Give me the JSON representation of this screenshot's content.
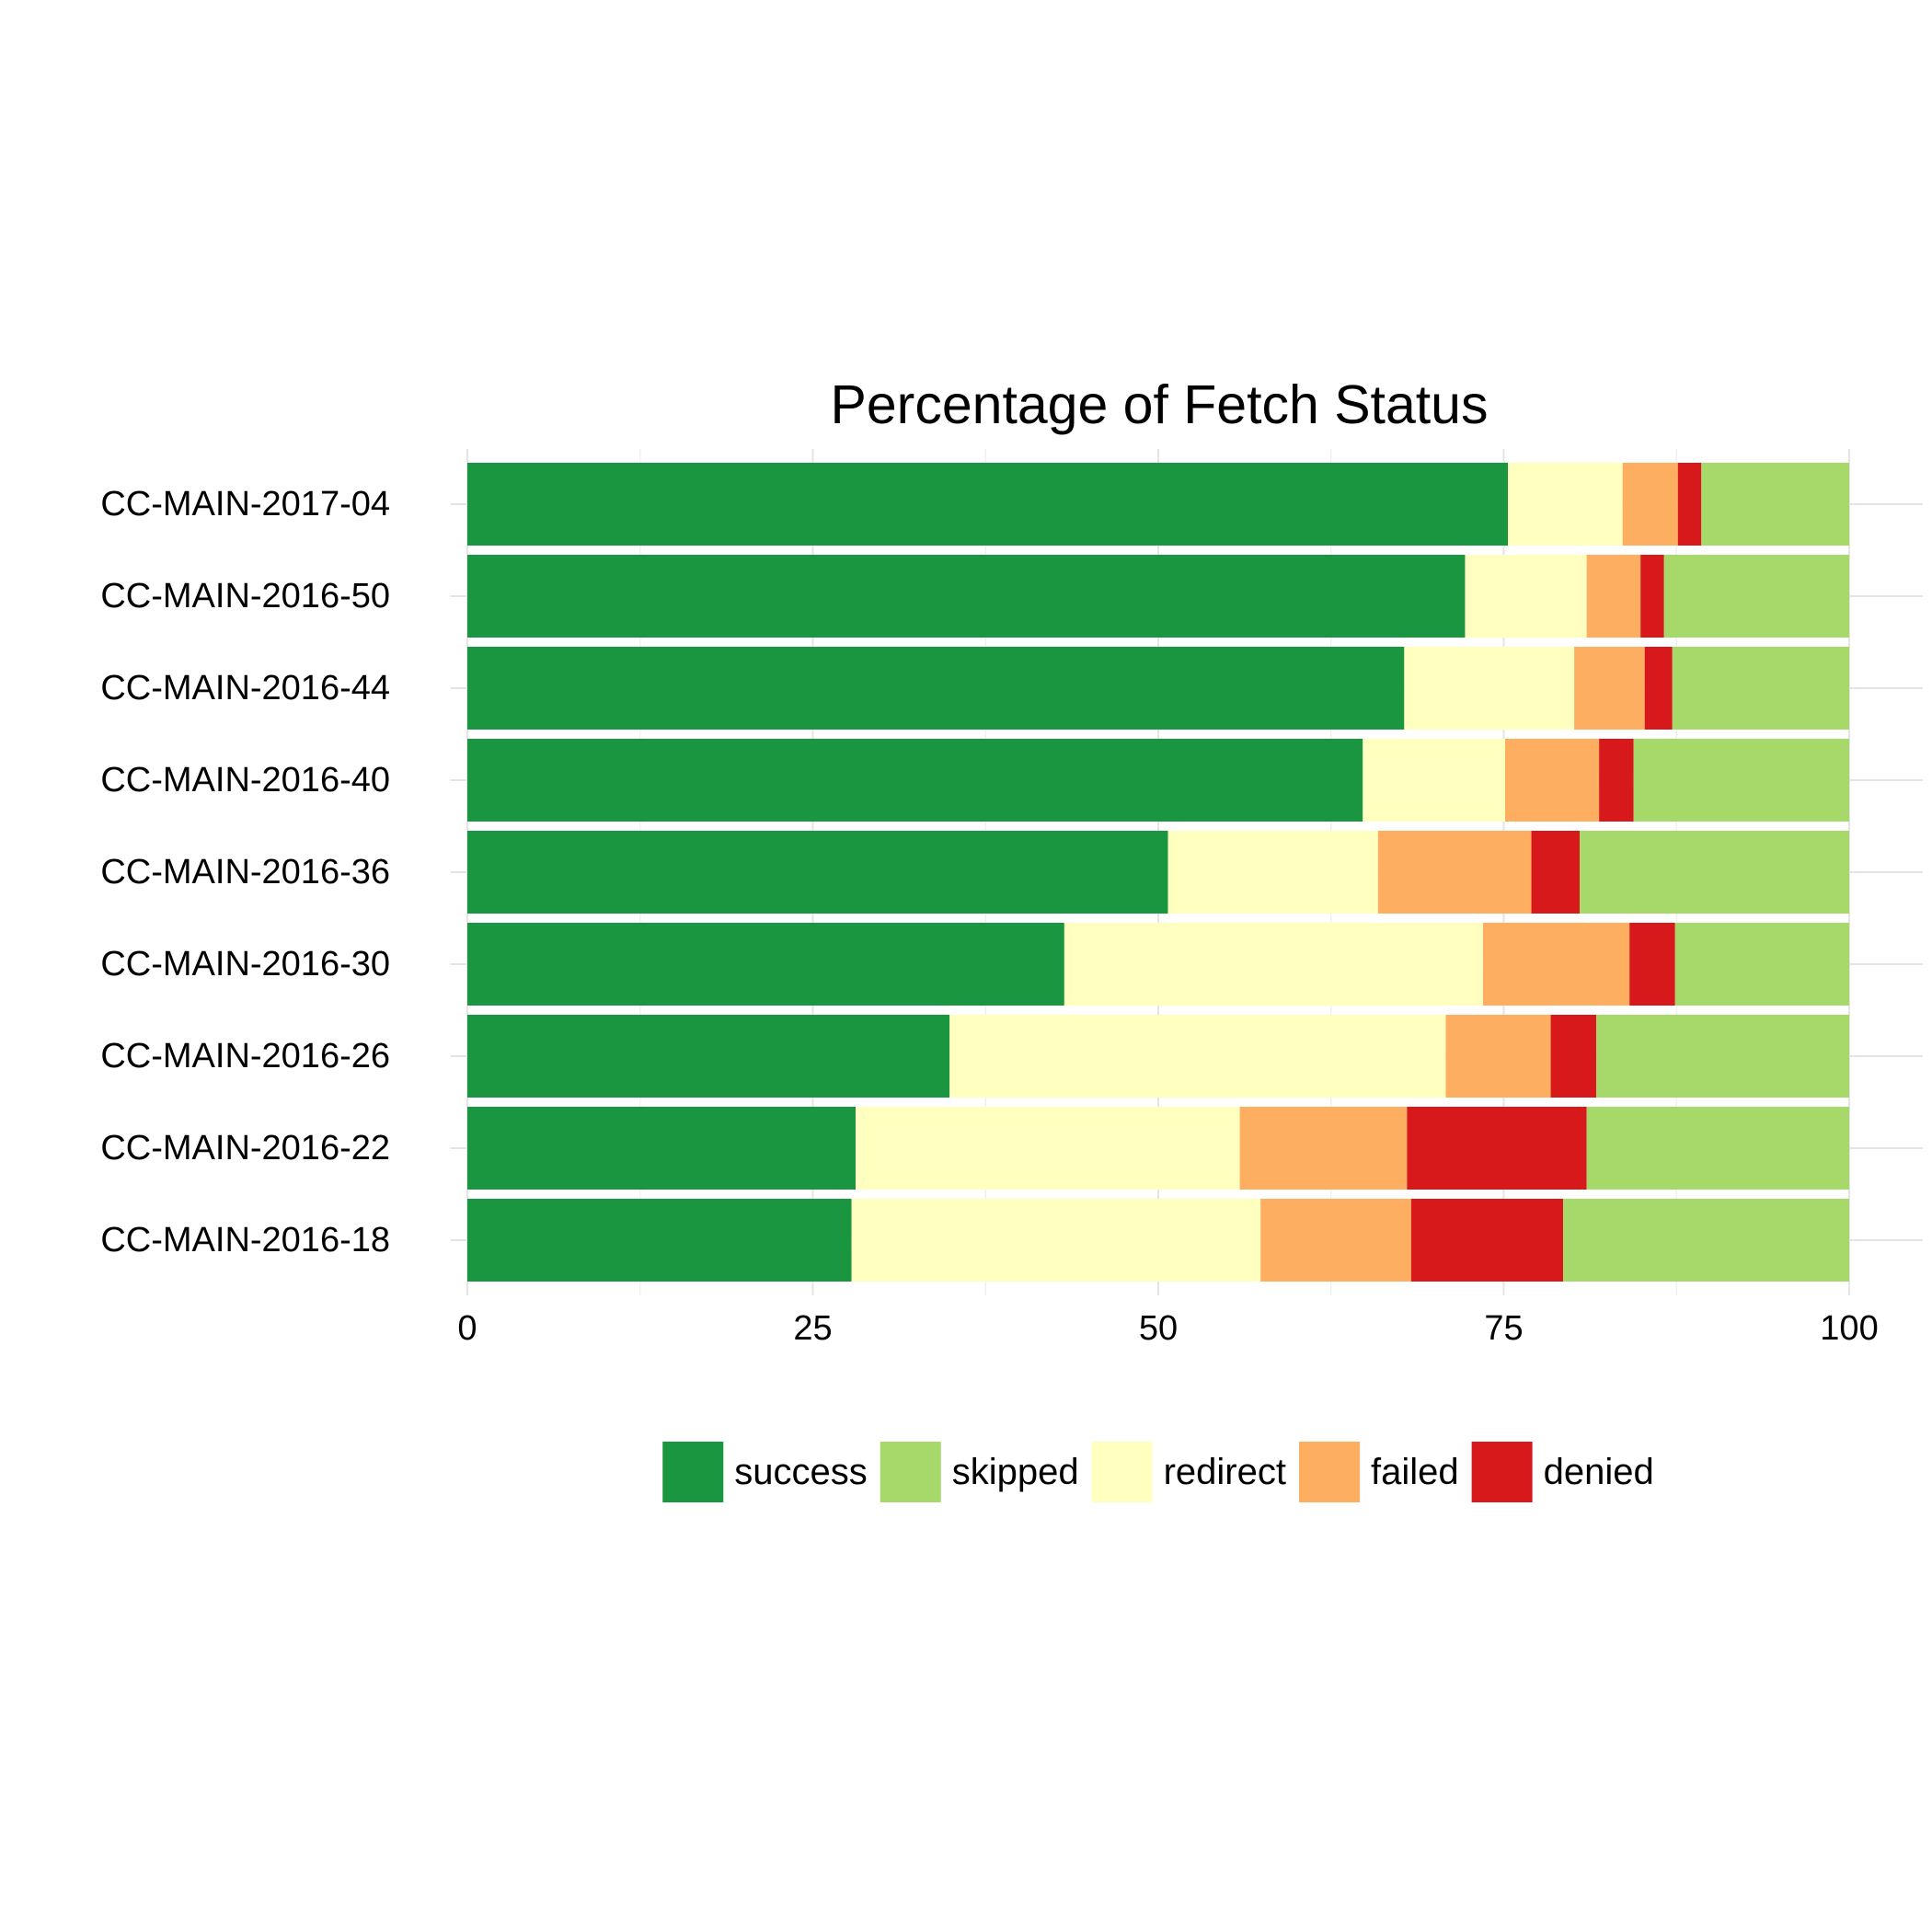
{
  "chart_data": {
    "type": "bar",
    "orientation": "horizontal",
    "stacked": true,
    "title": "Percentage of Fetch Status",
    "xlabel": "",
    "ylabel": "",
    "xlim": [
      0,
      100
    ],
    "x_ticks": [
      "0",
      "25",
      "50",
      "75",
      "100"
    ],
    "grid": true,
    "legend_position": "bottom",
    "categories": [
      "CC-MAIN-2017-04",
      "CC-MAIN-2016-50",
      "CC-MAIN-2016-44",
      "CC-MAIN-2016-40",
      "CC-MAIN-2016-36",
      "CC-MAIN-2016-30",
      "CC-MAIN-2016-26",
      "CC-MAIN-2016-22",
      "CC-MAIN-2016-18"
    ],
    "stack_order": [
      "success",
      "redirect",
      "failed",
      "denied",
      "skipped"
    ],
    "series": [
      {
        "name": "success",
        "color": "#1a9641",
        "values": [
          75.3,
          72.2,
          67.8,
          64.8,
          50.7,
          43.2,
          34.9,
          28.1,
          27.8
        ]
      },
      {
        "name": "skipped",
        "color": "#a6d96a",
        "values": [
          10.7,
          13.4,
          12.8,
          15.6,
          19.5,
          12.6,
          18.3,
          19.0,
          20.7
        ]
      },
      {
        "name": "redirect",
        "color": "#ffffbf",
        "values": [
          8.3,
          8.8,
          12.3,
          10.3,
          15.2,
          30.3,
          35.9,
          27.8,
          29.6
        ]
      },
      {
        "name": "failed",
        "color": "#fdae61",
        "values": [
          4.0,
          3.9,
          5.1,
          6.8,
          11.1,
          10.6,
          7.6,
          12.1,
          10.9
        ]
      },
      {
        "name": "denied",
        "color": "#d7191c",
        "values": [
          1.7,
          1.7,
          2.0,
          2.5,
          3.5,
          3.3,
          3.3,
          13.0,
          11.0
        ]
      }
    ]
  }
}
